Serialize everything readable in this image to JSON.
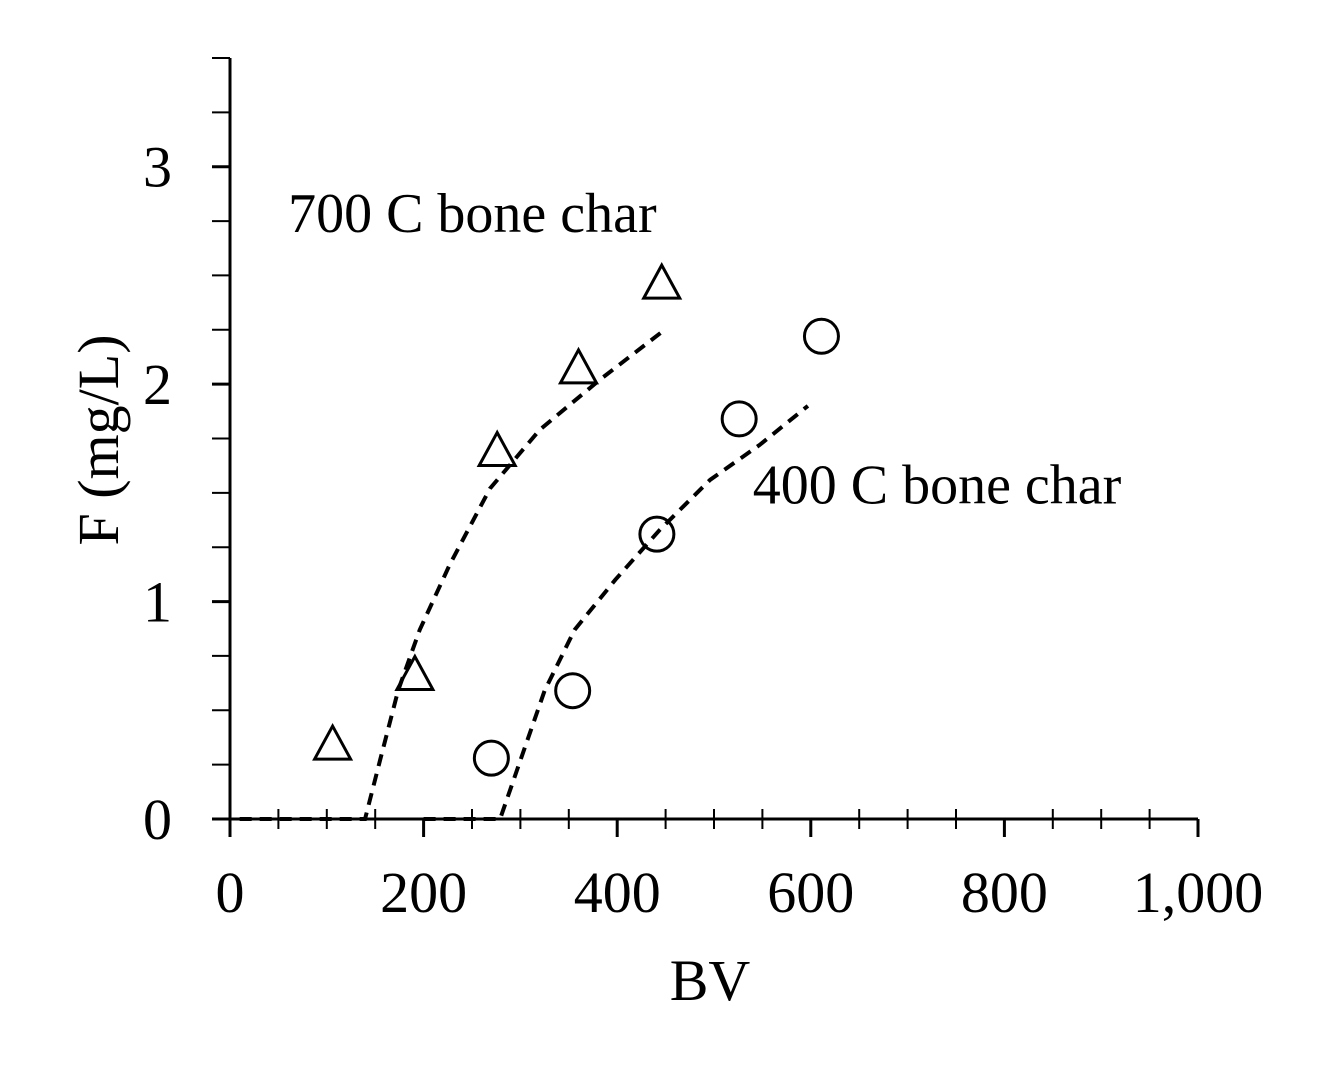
{
  "chart_data": {
    "type": "scatter",
    "xlabel": "BV",
    "ylabel": "F (mg/L)",
    "xlim": [
      0,
      1000
    ],
    "ylim": [
      0,
      3.5
    ],
    "xticks": [
      0,
      200,
      400,
      600,
      800,
      {
        "value": 1000,
        "label": "1,000"
      }
    ],
    "yticks": [
      0,
      1,
      2,
      3
    ],
    "xminorticks": [
      50,
      100,
      150,
      250,
      300,
      350,
      450,
      500,
      550,
      650,
      700,
      750,
      850,
      900,
      950
    ],
    "yminorticks": [
      0.25,
      0.5,
      0.75,
      1.25,
      1.5,
      1.75,
      2.25,
      2.5,
      2.75,
      3.25,
      3.5
    ],
    "color": "#000000",
    "annotations": [
      {
        "text": "700 C bone char",
        "x": 60,
        "y": 2.7
      },
      {
        "text": "400 C bone char",
        "x": 540,
        "y": 1.45
      }
    ],
    "series": [
      {
        "marker": "triangle",
        "x": [
          106,
          191,
          276,
          360,
          446
        ],
        "values": [
          0.34,
          0.66,
          1.69,
          2.07,
          2.46
        ]
      },
      {
        "marker": "circle",
        "x": [
          270,
          354,
          441,
          526,
          611
        ],
        "values": [
          0.28,
          0.59,
          1.31,
          1.84,
          2.22
        ]
      }
    ],
    "fits": [
      {
        "x": [
          10,
          139.5,
          155,
          173.6,
          196,
          227,
          268.6,
          320,
          382,
          449
        ],
        "values": [
          0,
          0,
          0.27,
          0.59,
          0.87,
          1.17,
          1.52,
          1.79,
          2.02,
          2.25
        ]
      },
      {
        "x": [
          200,
          279,
          300,
          325,
          356,
          398,
          444,
          496,
          547,
          597
        ],
        "values": [
          0,
          0,
          0.27,
          0.59,
          0.87,
          1.1,
          1.33,
          1.56,
          1.72,
          1.9
        ]
      }
    ]
  }
}
